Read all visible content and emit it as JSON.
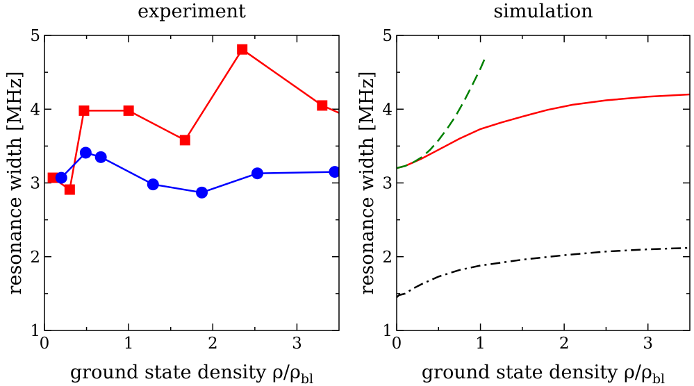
{
  "chart_data": [
    {
      "type": "line",
      "title": "experiment",
      "xlabel": "ground state density ρ/ρ",
      "xlabel_sub": "bl",
      "ylabel": "resonance width [MHz]",
      "xlim": [
        0,
        3.5
      ],
      "ylim": [
        1,
        5
      ],
      "xticks": [
        0,
        1,
        2,
        3
      ],
      "yticks": [
        1,
        2,
        3,
        4,
        5
      ],
      "grid": false,
      "series": [
        {
          "color": "#ff0000",
          "marker": "square",
          "style": "solid",
          "x": [
            0.1,
            0.3,
            0.47,
            1.0,
            1.67,
            2.35,
            3.3,
            3.5
          ],
          "y": [
            3.07,
            2.91,
            3.98,
            3.98,
            3.58,
            4.81,
            4.05,
            3.95
          ],
          "markers_at": [
            0,
            1,
            2,
            3,
            4,
            5,
            6
          ]
        },
        {
          "color": "#0000ff",
          "marker": "circle",
          "style": "solid",
          "x": [
            0.2,
            0.49,
            0.67,
            1.29,
            1.87,
            2.53,
            3.45
          ],
          "y": [
            3.07,
            3.41,
            3.35,
            2.98,
            2.87,
            3.13,
            3.15
          ],
          "markers_at": [
            0,
            1,
            2,
            3,
            4,
            5,
            6
          ]
        }
      ]
    },
    {
      "type": "line",
      "title": "simulation",
      "xlabel": "ground state density ρ/ρ",
      "xlabel_sub": "bl",
      "ylabel": "resonance width [MHz]",
      "xlim": [
        0,
        3.5
      ],
      "ylim": [
        1,
        5
      ],
      "xticks": [
        0,
        1,
        2,
        3
      ],
      "yticks": [
        1,
        2,
        3,
        4,
        5
      ],
      "grid": false,
      "series": [
        {
          "color": "#ff0000",
          "style": "solid",
          "x": [
            0,
            0.1,
            0.2,
            0.3,
            0.5,
            0.75,
            1.0,
            1.25,
            1.5,
            1.8,
            2.1,
            2.5,
            3.0,
            3.5
          ],
          "y": [
            3.2,
            3.23,
            3.28,
            3.33,
            3.45,
            3.6,
            3.73,
            3.82,
            3.9,
            3.99,
            4.06,
            4.12,
            4.17,
            4.2
          ]
        },
        {
          "color": "#008000",
          "style": "dashed",
          "x": [
            0,
            0.1,
            0.2,
            0.3,
            0.4,
            0.5,
            0.6,
            0.7,
            0.8,
            0.9,
            1.0,
            1.05
          ],
          "y": [
            3.2,
            3.23,
            3.28,
            3.35,
            3.45,
            3.58,
            3.73,
            3.9,
            4.1,
            4.32,
            4.55,
            4.68
          ]
        },
        {
          "color": "#000000",
          "style": "dashdot",
          "x": [
            0,
            0.03,
            0.1,
            0.2,
            0.3,
            0.4,
            0.5,
            0.75,
            1.0,
            1.25,
            1.5,
            2.0,
            2.5,
            3.0,
            3.5
          ],
          "y": [
            1.45,
            1.48,
            1.5,
            1.57,
            1.63,
            1.68,
            1.73,
            1.82,
            1.88,
            1.92,
            1.96,
            2.02,
            2.07,
            2.1,
            2.12
          ]
        }
      ]
    }
  ]
}
